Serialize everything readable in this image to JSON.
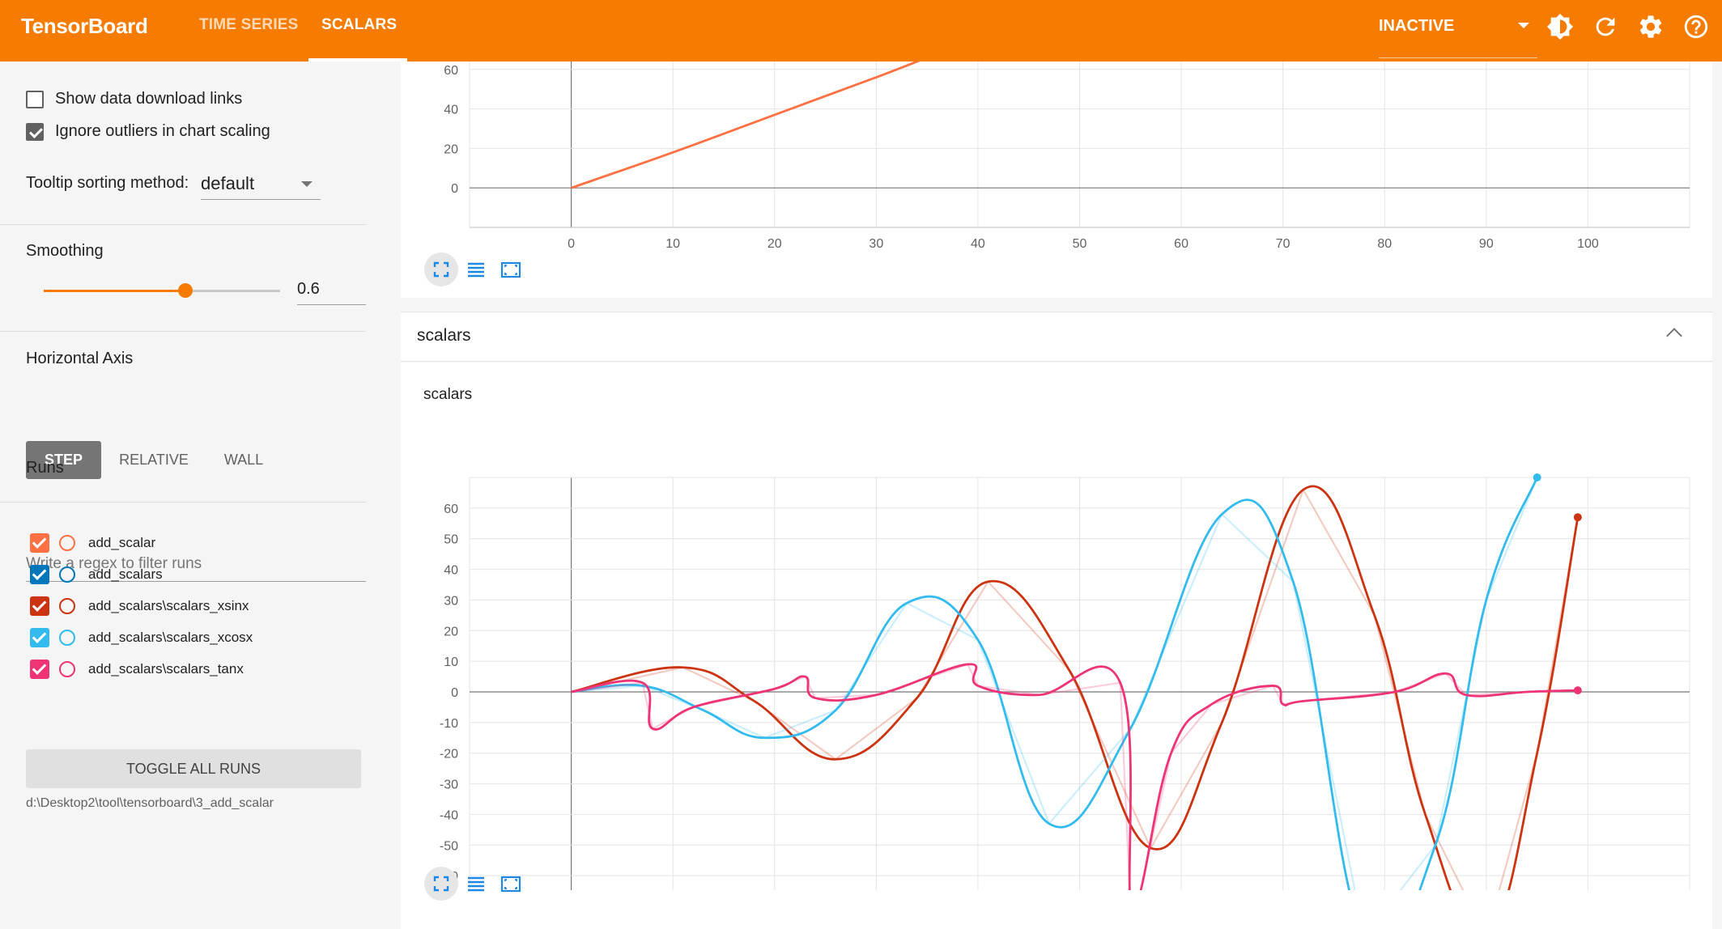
{
  "header": {
    "brand": "TensorBoard",
    "tabs": [
      {
        "label": "TIME SERIES"
      },
      {
        "label": "SCALARS"
      }
    ],
    "active_tab": "SCALARS",
    "status_select": "INACTIVE",
    "icons": [
      "theme-toggle-icon",
      "refresh-icon",
      "settings-icon",
      "help-icon"
    ],
    "color": "#f57c00"
  },
  "sidebar": {
    "show_download_links": {
      "label": "Show data download links",
      "checked": false
    },
    "ignore_outliers": {
      "label": "Ignore outliers in chart scaling",
      "checked": true
    },
    "tooltip_sorting": {
      "label": "Tooltip sorting method:",
      "value": "default"
    },
    "smoothing": {
      "label": "Smoothing",
      "value": "0.6",
      "fraction": 0.6
    },
    "horizontal_axis": {
      "label": "Horizontal Axis",
      "options": [
        "STEP",
        "RELATIVE",
        "WALL"
      ],
      "selected": "STEP"
    },
    "runs": {
      "label": "Runs",
      "filter_placeholder": "Write a regex to filter runs",
      "items": [
        {
          "name": "add_scalar",
          "color": "#ff7043",
          "checked": true
        },
        {
          "name": "add_scalars",
          "color": "#0077bb",
          "checked": true
        },
        {
          "name": "add_scalars\\scalars_xsinx",
          "color": "#cc3311",
          "checked": true
        },
        {
          "name": "add_scalars\\scalars_xcosx",
          "color": "#33bbee",
          "checked": true
        },
        {
          "name": "add_scalars\\scalars_tanx",
          "color": "#ee3377",
          "checked": true
        }
      ],
      "toggle_all_label": "TOGGLE ALL RUNS",
      "logdir": "d:\\Desktop2\\tool\\tensorboard\\3_add_scalar"
    }
  },
  "main": {
    "group": {
      "title": "scalars"
    },
    "card_title": "scalars"
  },
  "chart_data": [
    {
      "type": "line",
      "title": "",
      "x_ticks": [
        0,
        10,
        20,
        30,
        40,
        50,
        60,
        70,
        80,
        90,
        100
      ],
      "y_ticks": [
        0,
        20,
        40,
        60
      ],
      "series": [
        {
          "color": "#ff7043",
          "x": [
            0,
            10,
            20,
            30,
            35
          ],
          "y": [
            0,
            18,
            37,
            56,
            66
          ]
        }
      ]
    },
    {
      "type": "line",
      "title": "scalars",
      "xlim": [
        -10,
        110
      ],
      "ylim": [
        -70,
        70
      ],
      "x_ticks": [
        0,
        10,
        20,
        30,
        40,
        50,
        60,
        70,
        80,
        90,
        100
      ],
      "y_ticks": [
        60,
        50,
        40,
        30,
        20,
        10,
        0,
        -10,
        -20,
        -30,
        -40,
        -50,
        -60
      ],
      "series": [
        {
          "name": "add_scalars\\scalars_xsinx",
          "color": "#cc3311",
          "x": [
            0,
            11,
            18,
            26,
            34,
            41,
            49,
            57,
            64,
            72,
            79,
            84,
            90,
            95,
            99
          ],
          "y": [
            0,
            8,
            -3,
            -22,
            -2,
            36,
            7,
            -51,
            -10,
            66,
            25,
            -40,
            -80,
            -20,
            57
          ]
        },
        {
          "name": "add_scalars\\scalars_xcosx",
          "color": "#33bbee",
          "x": [
            0,
            7,
            13,
            19,
            26,
            33,
            40,
            47,
            55,
            64,
            71,
            78,
            85,
            90,
            95
          ],
          "y": [
            0,
            2,
            -6,
            -15,
            -6,
            29,
            17,
            -43,
            -12,
            58,
            36,
            -80,
            -50,
            30,
            70
          ]
        },
        {
          "name": "add_scalars\\scalars_tanx",
          "color": "#ee3377",
          "x": [
            0,
            7,
            8,
            12,
            20,
            23,
            24,
            30,
            39,
            40,
            46,
            54,
            55,
            56,
            59,
            63,
            69,
            70,
            72,
            81,
            86,
            88,
            94,
            99
          ],
          "y": [
            0,
            3,
            -12,
            -5,
            1,
            5,
            -2,
            -1,
            9,
            2,
            -1,
            3,
            -70,
            -65,
            -20,
            -4,
            2,
            -4,
            -3,
            0,
            6,
            -1,
            0,
            0.5
          ]
        }
      ]
    }
  ]
}
